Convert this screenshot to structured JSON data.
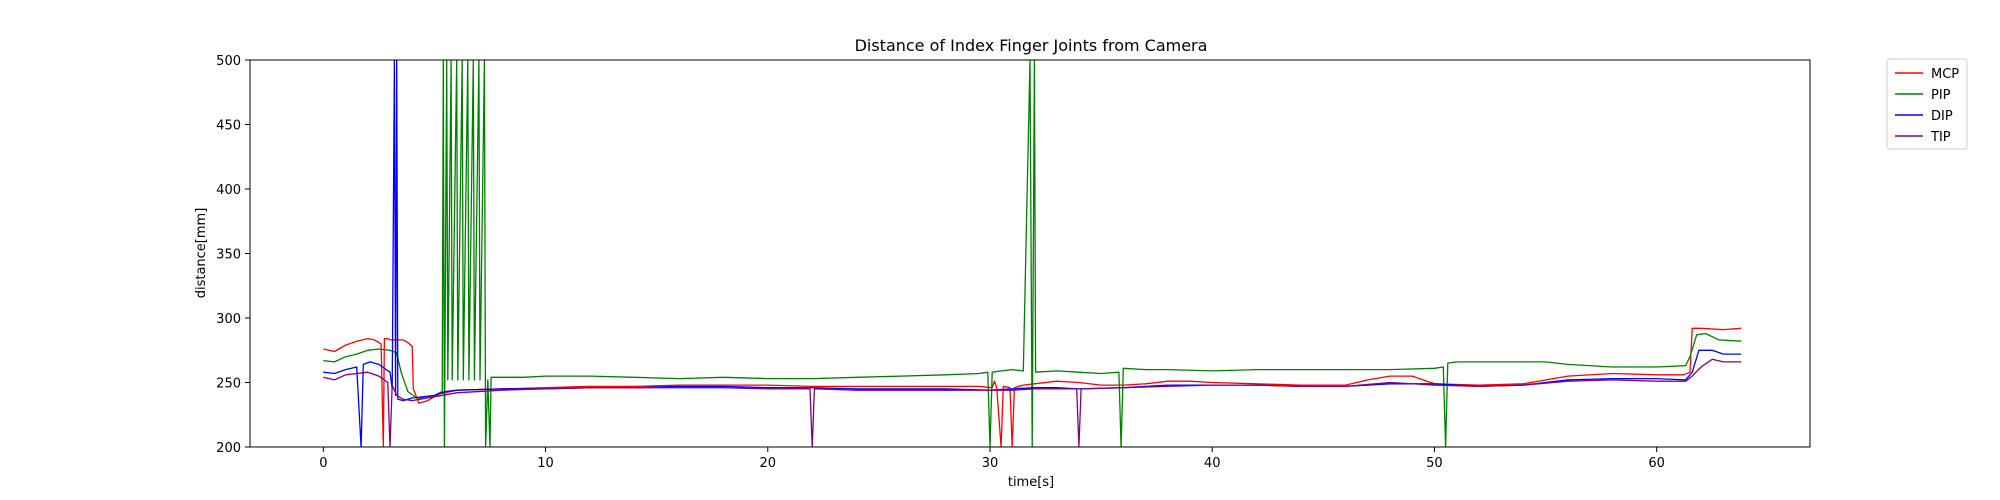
{
  "chart_data": {
    "type": "line",
    "title": "Distance of Index Finger Joints from Camera",
    "xlabel": "time[s]",
    "ylabel": "distance[mm]",
    "xlim": [
      -3.3,
      66.9
    ],
    "ylim": [
      200,
      500
    ],
    "xticks": [
      0,
      10,
      20,
      30,
      40,
      50,
      60
    ],
    "yticks": [
      200,
      250,
      300,
      350,
      400,
      450,
      500
    ],
    "grid": false,
    "legend_position": "outside-top-right",
    "series": [
      {
        "name": "MCP",
        "color": "#ff0000",
        "points": [
          [
            0,
            276
          ],
          [
            0.5,
            274
          ],
          [
            1.0,
            279
          ],
          [
            1.5,
            282
          ],
          [
            2.0,
            284
          ],
          [
            2.3,
            283
          ],
          [
            2.6,
            280
          ],
          [
            2.7,
            200
          ],
          [
            2.75,
            284
          ],
          [
            2.9,
            284
          ],
          [
            3.0,
            283
          ],
          [
            3.3,
            283
          ],
          [
            3.6,
            283
          ],
          [
            3.8,
            281
          ],
          [
            4.0,
            278
          ],
          [
            4.05,
            245
          ],
          [
            4.3,
            234
          ],
          [
            4.7,
            236
          ],
          [
            5.2,
            241
          ],
          [
            6,
            244
          ],
          [
            8,
            245
          ],
          [
            10,
            246
          ],
          [
            12,
            247
          ],
          [
            14,
            247
          ],
          [
            16,
            248
          ],
          [
            18,
            248
          ],
          [
            20,
            248
          ],
          [
            22,
            247
          ],
          [
            24,
            247
          ],
          [
            26,
            247
          ],
          [
            28,
            247
          ],
          [
            29.5,
            247
          ],
          [
            30.1,
            246
          ],
          [
            30.2,
            251
          ],
          [
            30.3,
            246
          ],
          [
            30.5,
            200
          ],
          [
            30.6,
            247
          ],
          [
            30.9,
            246
          ],
          [
            31.0,
            200
          ],
          [
            31.1,
            246
          ],
          [
            31.5,
            248
          ],
          [
            32,
            249
          ],
          [
            33,
            251
          ],
          [
            34,
            250
          ],
          [
            35,
            248
          ],
          [
            36,
            248
          ],
          [
            37,
            249
          ],
          [
            38,
            251
          ],
          [
            39,
            251
          ],
          [
            40,
            250
          ],
          [
            42,
            249
          ],
          [
            44,
            248
          ],
          [
            46,
            248
          ],
          [
            47,
            252
          ],
          [
            48,
            255
          ],
          [
            49,
            255
          ],
          [
            50,
            249
          ],
          [
            52,
            248
          ],
          [
            54,
            249
          ],
          [
            56,
            255
          ],
          [
            58,
            257
          ],
          [
            60,
            256
          ],
          [
            61.2,
            256
          ],
          [
            61.5,
            258
          ],
          [
            61.6,
            292
          ],
          [
            62,
            292
          ],
          [
            63,
            291
          ],
          [
            63.8,
            292
          ]
        ]
      },
      {
        "name": "PIP",
        "color": "#008000",
        "points": [
          [
            0,
            267
          ],
          [
            0.5,
            266
          ],
          [
            1.0,
            270
          ],
          [
            1.5,
            272
          ],
          [
            2.0,
            275
          ],
          [
            2.5,
            276
          ],
          [
            3.0,
            275
          ],
          [
            3.3,
            273
          ],
          [
            3.5,
            258
          ],
          [
            3.8,
            243
          ],
          [
            4.2,
            238
          ],
          [
            4.6,
            238
          ],
          [
            5.0,
            240
          ],
          [
            5.35,
            243
          ],
          [
            5.4,
            500
          ],
          [
            5.45,
            200
          ],
          [
            5.55,
            500
          ],
          [
            5.6,
            252
          ],
          [
            5.75,
            500
          ],
          [
            5.8,
            252
          ],
          [
            6.0,
            500
          ],
          [
            6.05,
            252
          ],
          [
            6.25,
            500
          ],
          [
            6.3,
            252
          ],
          [
            6.5,
            500
          ],
          [
            6.55,
            252
          ],
          [
            6.75,
            500
          ],
          [
            6.8,
            252
          ],
          [
            7.0,
            500
          ],
          [
            7.05,
            252
          ],
          [
            7.25,
            500
          ],
          [
            7.3,
            200
          ],
          [
            7.4,
            252
          ],
          [
            7.5,
            200
          ],
          [
            7.55,
            254
          ],
          [
            8,
            254
          ],
          [
            9,
            254
          ],
          [
            10,
            255
          ],
          [
            12,
            255
          ],
          [
            14,
            254
          ],
          [
            16,
            253
          ],
          [
            18,
            254
          ],
          [
            20,
            253
          ],
          [
            22,
            253
          ],
          [
            24,
            254
          ],
          [
            26,
            255
          ],
          [
            28,
            256
          ],
          [
            29.5,
            257
          ],
          [
            29.9,
            258
          ],
          [
            30.0,
            200
          ],
          [
            30.1,
            258
          ],
          [
            30.5,
            259
          ],
          [
            31,
            260
          ],
          [
            31.5,
            259
          ],
          [
            31.8,
            500
          ],
          [
            31.9,
            200
          ],
          [
            32.0,
            500
          ],
          [
            32.05,
            258
          ],
          [
            33,
            259
          ],
          [
            34,
            258
          ],
          [
            35,
            257
          ],
          [
            35.8,
            258
          ],
          [
            35.9,
            200
          ],
          [
            36.0,
            261
          ],
          [
            37,
            260
          ],
          [
            38,
            260
          ],
          [
            40,
            259
          ],
          [
            42,
            260
          ],
          [
            44,
            260
          ],
          [
            46,
            260
          ],
          [
            48,
            260
          ],
          [
            50,
            261
          ],
          [
            50.4,
            262
          ],
          [
            50.5,
            200
          ],
          [
            50.6,
            265
          ],
          [
            51,
            266
          ],
          [
            53,
            266
          ],
          [
            55,
            266
          ],
          [
            56,
            264
          ],
          [
            58,
            262
          ],
          [
            60,
            262
          ],
          [
            61.3,
            263
          ],
          [
            61.5,
            270
          ],
          [
            61.8,
            287
          ],
          [
            62.2,
            288
          ],
          [
            62.8,
            283
          ],
          [
            63.8,
            282
          ]
        ]
      },
      {
        "name": "DIP",
        "color": "#0000ff",
        "points": [
          [
            0,
            258
          ],
          [
            0.5,
            257
          ],
          [
            1.0,
            260
          ],
          [
            1.5,
            262
          ],
          [
            1.7,
            200
          ],
          [
            1.8,
            264
          ],
          [
            2.1,
            266
          ],
          [
            2.5,
            264
          ],
          [
            3.0,
            258
          ],
          [
            3.1,
            245
          ],
          [
            3.2,
            500
          ],
          [
            3.25,
            240
          ],
          [
            3.3,
            500
          ],
          [
            3.35,
            237
          ],
          [
            3.6,
            236
          ],
          [
            4.0,
            238
          ],
          [
            5.0,
            240
          ],
          [
            5.5,
            243
          ],
          [
            6,
            244
          ],
          [
            8,
            245
          ],
          [
            10,
            245
          ],
          [
            12,
            246
          ],
          [
            14,
            246
          ],
          [
            16,
            247
          ],
          [
            18,
            247
          ],
          [
            20,
            246
          ],
          [
            22,
            246
          ],
          [
            24,
            245
          ],
          [
            26,
            245
          ],
          [
            28,
            245
          ],
          [
            30,
            244
          ],
          [
            31,
            245
          ],
          [
            32,
            246
          ],
          [
            33,
            246
          ],
          [
            34,
            245
          ],
          [
            36,
            246
          ],
          [
            38,
            248
          ],
          [
            40,
            248
          ],
          [
            42,
            248
          ],
          [
            44,
            247
          ],
          [
            46,
            247
          ],
          [
            48,
            249
          ],
          [
            50,
            249
          ],
          [
            52,
            247
          ],
          [
            54,
            248
          ],
          [
            56,
            252
          ],
          [
            58,
            253
          ],
          [
            60,
            253
          ],
          [
            61.3,
            252
          ],
          [
            61.6,
            258
          ],
          [
            61.9,
            275
          ],
          [
            62.5,
            275
          ],
          [
            63.0,
            272
          ],
          [
            63.8,
            272
          ]
        ]
      },
      {
        "name": "TIP",
        "color": "#800080",
        "points": [
          [
            0,
            254
          ],
          [
            0.5,
            252
          ],
          [
            1.0,
            256
          ],
          [
            1.5,
            257
          ],
          [
            2.0,
            258
          ],
          [
            2.5,
            255
          ],
          [
            2.9,
            250
          ],
          [
            3.0,
            200
          ],
          [
            3.1,
            248
          ],
          [
            3.3,
            240
          ],
          [
            3.6,
            237
          ],
          [
            4.0,
            236
          ],
          [
            5.0,
            239
          ],
          [
            6,
            242
          ],
          [
            8,
            244
          ],
          [
            10,
            245
          ],
          [
            12,
            246
          ],
          [
            14,
            246
          ],
          [
            16,
            246
          ],
          [
            18,
            246
          ],
          [
            20,
            245
          ],
          [
            21.9,
            245
          ],
          [
            22.0,
            200
          ],
          [
            22.1,
            245
          ],
          [
            24,
            244
          ],
          [
            26,
            244
          ],
          [
            28,
            244
          ],
          [
            30,
            244
          ],
          [
            31,
            244
          ],
          [
            32,
            245
          ],
          [
            33,
            245
          ],
          [
            33.9,
            245
          ],
          [
            34.0,
            200
          ],
          [
            34.1,
            245
          ],
          [
            36,
            246
          ],
          [
            38,
            247
          ],
          [
            40,
            248
          ],
          [
            42,
            248
          ],
          [
            44,
            247
          ],
          [
            46,
            247
          ],
          [
            48,
            250
          ],
          [
            50,
            248
          ],
          [
            52,
            247
          ],
          [
            54,
            248
          ],
          [
            56,
            251
          ],
          [
            58,
            252
          ],
          [
            60,
            251
          ],
          [
            61.3,
            251
          ],
          [
            61.6,
            255
          ],
          [
            62,
            262
          ],
          [
            62.5,
            268
          ],
          [
            63,
            266
          ],
          [
            63.8,
            266
          ]
        ]
      }
    ]
  }
}
